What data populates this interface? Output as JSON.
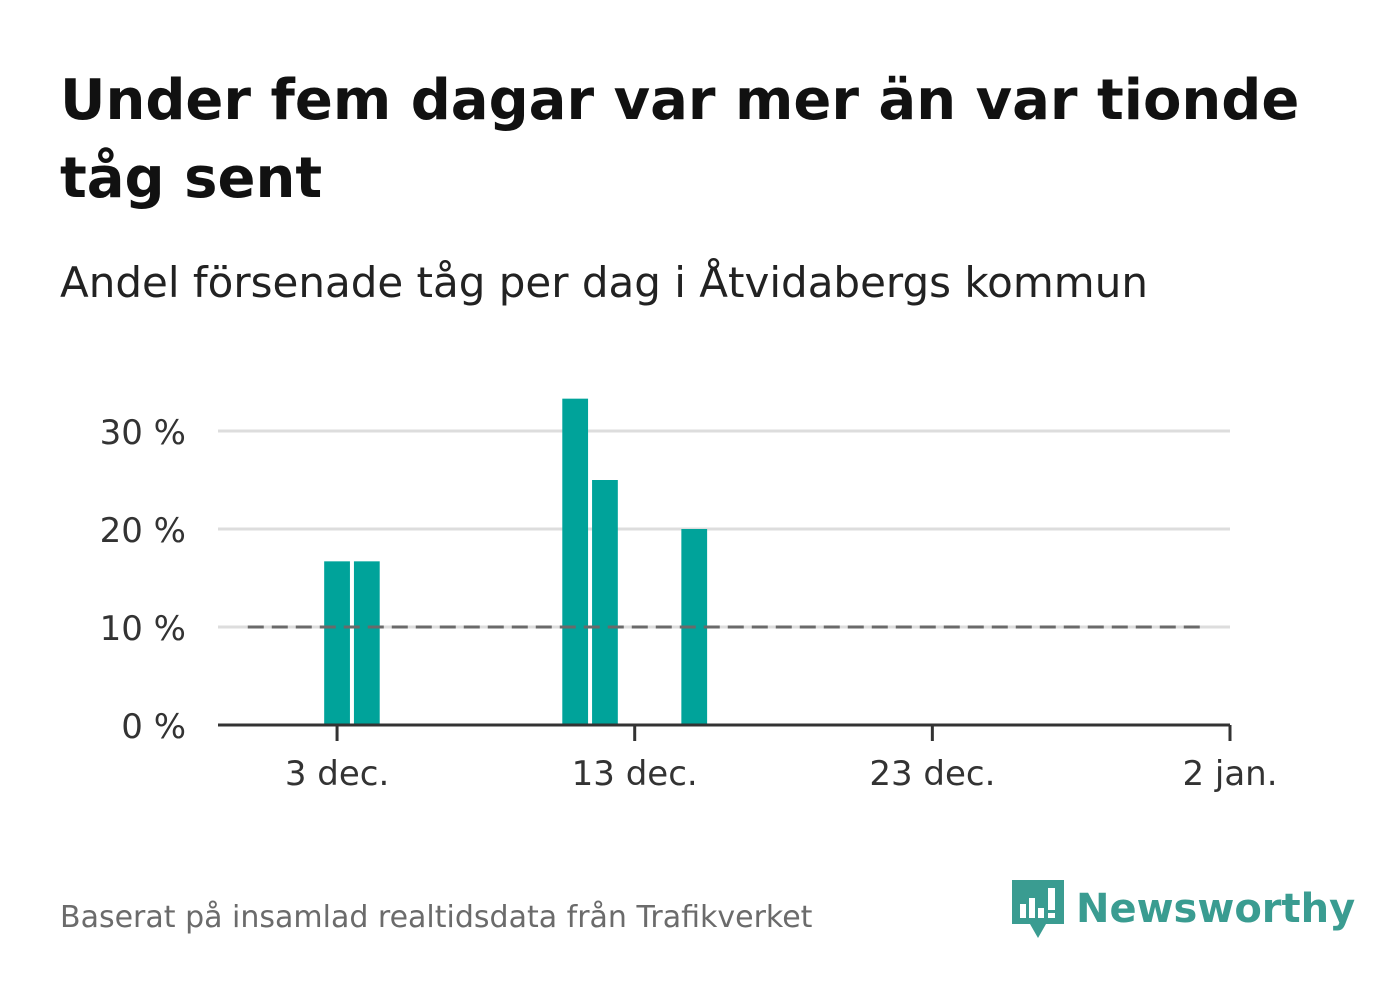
{
  "colors": {
    "bar": "#00a39a",
    "reference_line": "#6a6a6a",
    "grid": "#dddddd",
    "axis": "#333333",
    "brand": "#3a9c91"
  },
  "footer": {
    "source": "Baserat på insamlad realtidsdata från Trafikverket"
  },
  "brand": {
    "name": "Newsworthy",
    "icon": "newsworthy-logo-icon"
  },
  "chart_data": {
    "type": "bar",
    "title": "Under fem dagar var mer än var tionde tåg sent",
    "subtitle": "Andel försenade tåg per dag i Åtvidabergs kommun",
    "x_ticks": [
      {
        "date": "2020-12-03",
        "label": "3 dec."
      },
      {
        "date": "2020-12-13",
        "label": "13 dec."
      },
      {
        "date": "2020-12-23",
        "label": "23 dec."
      },
      {
        "date": "2021-01-02",
        "label": "2 jan."
      }
    ],
    "y_ticks": [
      0,
      10,
      20,
      30
    ],
    "y_tick_labels": [
      "0 %",
      "10 %",
      "20 %",
      "30 %"
    ],
    "ylim": [
      0,
      33.3
    ],
    "xlim": [
      "2020-11-29",
      "2021-01-02"
    ],
    "series": [
      {
        "values": [
          {
            "date": "2020-12-03",
            "value": 16.7
          },
          {
            "date": "2020-12-04",
            "value": 16.7
          },
          {
            "date": "2020-12-11",
            "value": 33.3
          },
          {
            "date": "2020-12-12",
            "value": 25.0
          },
          {
            "date": "2020-12-15",
            "value": 20.0
          }
        ]
      }
    ],
    "reference_line": {
      "value": 10,
      "from": "2020-11-30",
      "to": "2021-01-01",
      "style": "dashed"
    },
    "grid": true,
    "legend": "none"
  }
}
